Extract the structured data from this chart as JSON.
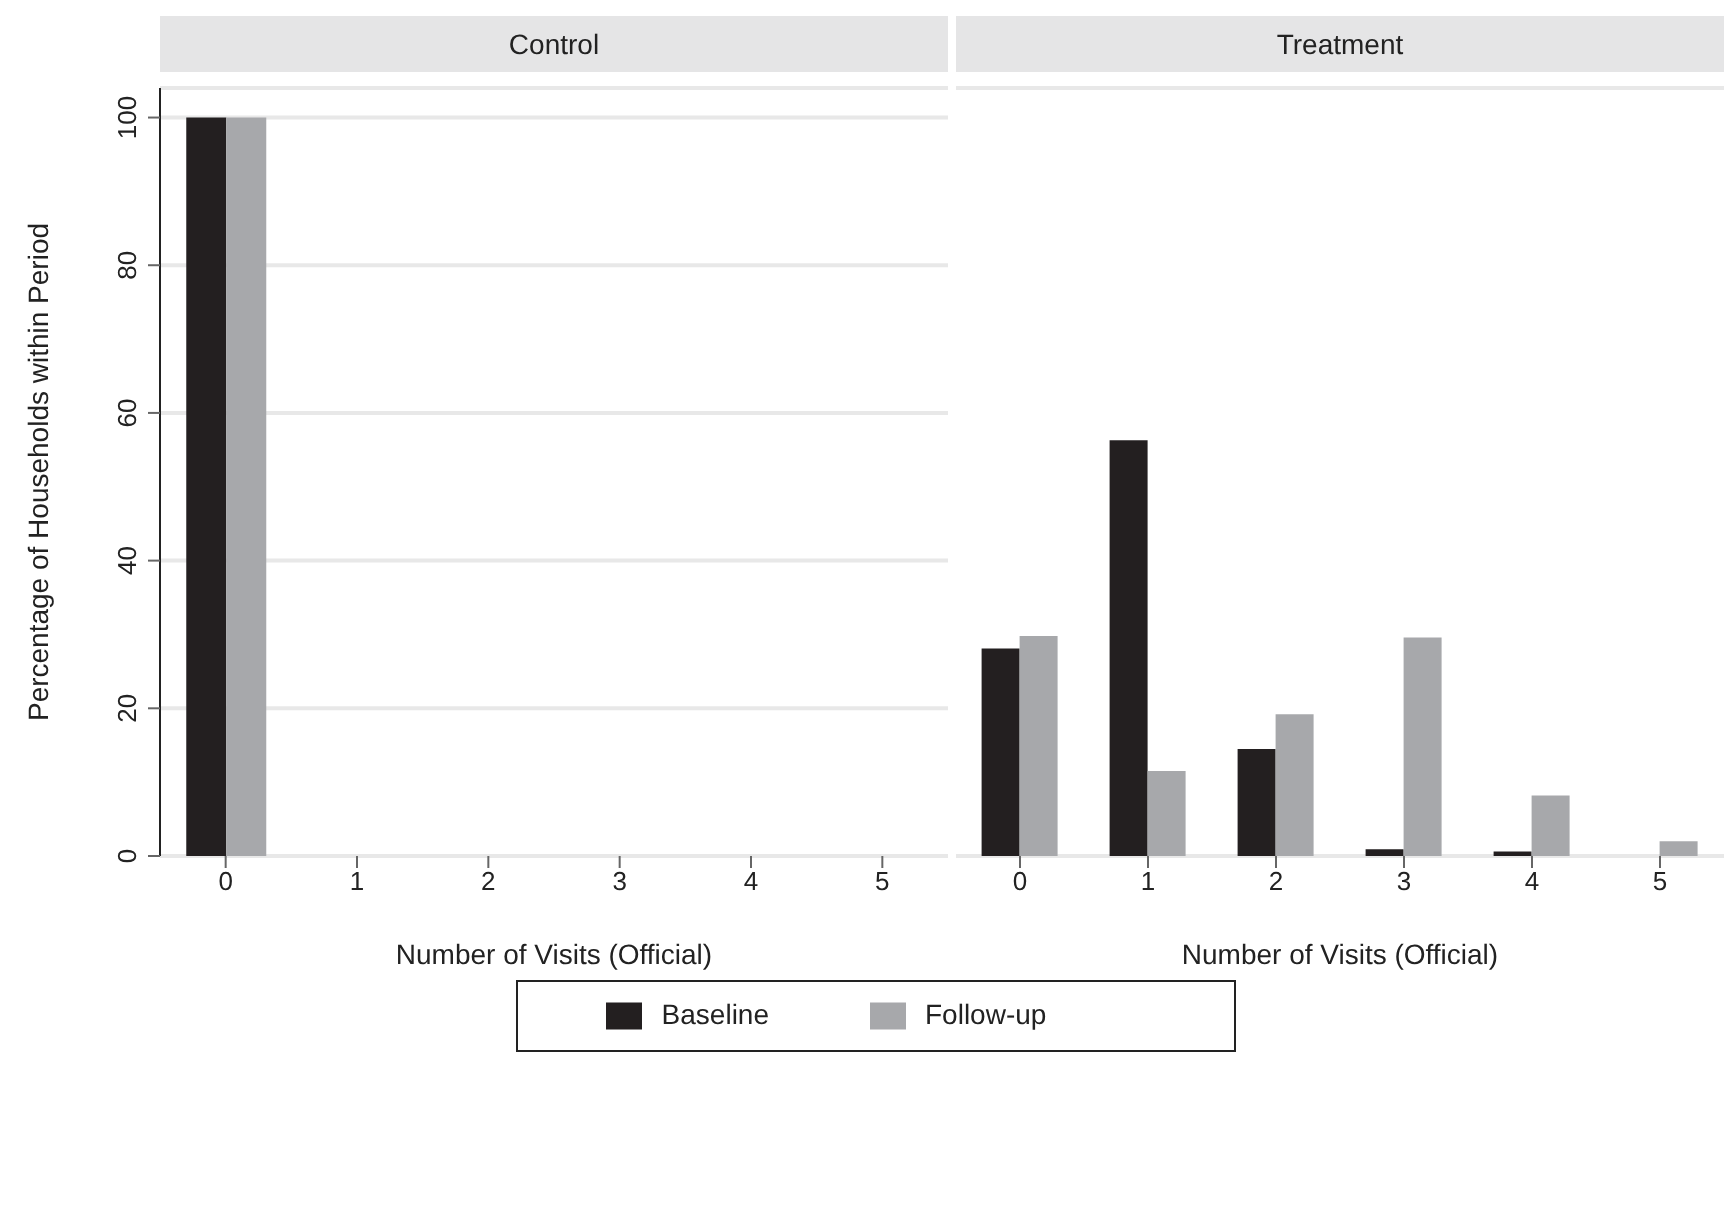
{
  "chart_data": [
    {
      "type": "bar",
      "title": "Control",
      "xlabel": "Number of Visits (Official)",
      "ylabel": "Percentage of Households within Period",
      "categories": [
        "0",
        "1",
        "2",
        "3",
        "4",
        "5"
      ],
      "series": [
        {
          "name": "Baseline",
          "color": "#231f20",
          "values": [
            100,
            0,
            0,
            0,
            0,
            0
          ]
        },
        {
          "name": "Follow-up",
          "color": "#a7a8ab",
          "values": [
            100,
            0,
            0,
            0,
            0,
            0
          ]
        }
      ],
      "ylim": [
        0,
        104
      ],
      "yticks": [
        0,
        20,
        40,
        60,
        80,
        100
      ],
      "grid": "y",
      "legend": "bottom"
    },
    {
      "type": "bar",
      "title": "Treatment",
      "xlabel": "Number of Visits (Official)",
      "categories": [
        "0",
        "1",
        "2",
        "3",
        "4",
        "5"
      ],
      "series": [
        {
          "color": "#231f20",
          "values": [
            28.1,
            56.3,
            14.5,
            0.9,
            0.6,
            0
          ]
        },
        {
          "color": "#a7a8ab",
          "values": [
            29.8,
            11.5,
            19.2,
            29.6,
            8.2,
            2
          ]
        }
      ],
      "ylim": [
        0,
        104
      ],
      "yticks": [
        0,
        20,
        40,
        60,
        80,
        100
      ],
      "grid": "y",
      "tick_labels": "x"
    }
  ]
}
